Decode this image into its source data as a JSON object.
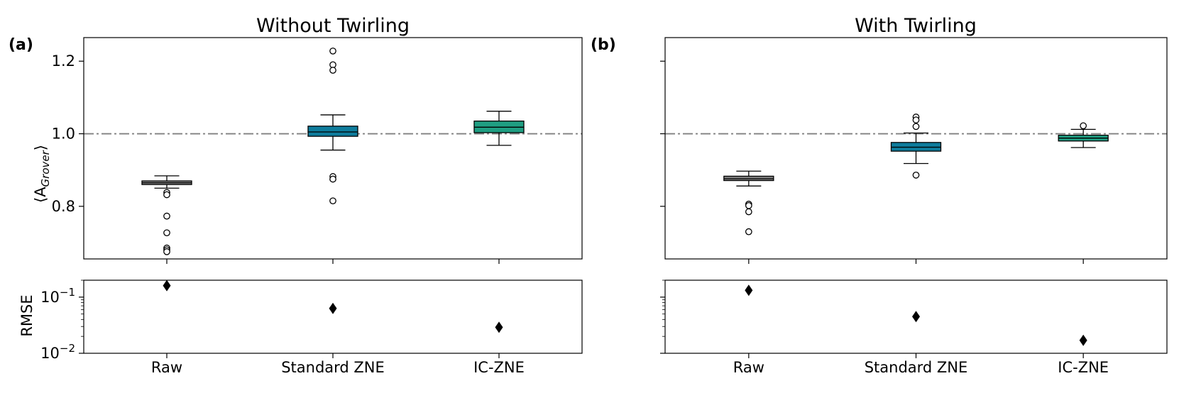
{
  "chart_data": [
    {
      "type": "box",
      "panel": "(a)",
      "title": "Without Twirling",
      "ylabel": "⟨A_Grover⟩",
      "ylabel_main": "⟨A",
      "ylabel_sub": "Grover",
      "ylabel_close": "⟩",
      "ylim": [
        0.655,
        1.265
      ],
      "yticks": [
        0.8,
        1.0,
        1.2
      ],
      "ytick_labels": [
        "0.8",
        "1.0",
        "1.2"
      ],
      "reference_line": 1.0,
      "categories": [
        "Raw",
        "Standard ZNE",
        "IC-ZNE"
      ],
      "boxes": [
        {
          "name": "Raw",
          "color": "#808080",
          "whislo": 0.85,
          "q1": 0.86,
          "median": 0.865,
          "q3": 0.87,
          "whishi": 0.884,
          "fliers": [
            0.838,
            0.832,
            0.773,
            0.727,
            0.685,
            0.68,
            0.675
          ]
        },
        {
          "name": "Standard ZNE",
          "color": "#0e7c9c",
          "whislo": 0.955,
          "q1": 0.993,
          "median": 1.005,
          "q3": 1.021,
          "whishi": 1.052,
          "fliers": [
            1.228,
            1.19,
            1.175,
            0.882,
            0.875,
            0.815
          ]
        },
        {
          "name": "IC-ZNE",
          "color": "#1f9e82",
          "whislo": 0.968,
          "q1": 1.003,
          "median": 1.018,
          "q3": 1.035,
          "whishi": 1.062,
          "fliers": []
        }
      ],
      "rmse": {
        "ylabel": "RMSE",
        "scale": "log",
        "ylim": [
          0.01,
          0.2
        ],
        "yticks": [
          0.01,
          0.1
        ],
        "ytick_base": "10",
        "ytick_exponents": [
          "−2",
          "−1"
        ],
        "values": [
          0.16,
          0.063,
          0.029
        ]
      }
    },
    {
      "type": "box",
      "panel": "(b)",
      "title": "With Twirling",
      "ylim": [
        0.655,
        1.265
      ],
      "yticks": [
        0.8,
        1.0,
        1.2
      ],
      "reference_line": 1.0,
      "categories": [
        "Raw",
        "Standard ZNE",
        "IC-ZNE"
      ],
      "boxes": [
        {
          "name": "Raw",
          "color": "#808080",
          "whislo": 0.856,
          "q1": 0.871,
          "median": 0.876,
          "q3": 0.883,
          "whishi": 0.897,
          "fliers": [
            0.806,
            0.802,
            0.785,
            0.73
          ]
        },
        {
          "name": "Standard ZNE",
          "color": "#0e7c9c",
          "whislo": 0.918,
          "q1": 0.952,
          "median": 0.963,
          "q3": 0.976,
          "whishi": 1.002,
          "fliers": [
            1.046,
            1.038,
            1.02,
            0.886
          ]
        },
        {
          "name": "IC-ZNE",
          "color": "#1f9e82",
          "whislo": 0.962,
          "q1": 0.98,
          "median": 0.988,
          "q3": 0.996,
          "whishi": 1.012,
          "fliers": [
            1.022
          ]
        }
      ],
      "rmse": {
        "scale": "log",
        "ylim": [
          0.01,
          0.2
        ],
        "values": [
          0.132,
          0.045,
          0.017
        ]
      }
    }
  ]
}
